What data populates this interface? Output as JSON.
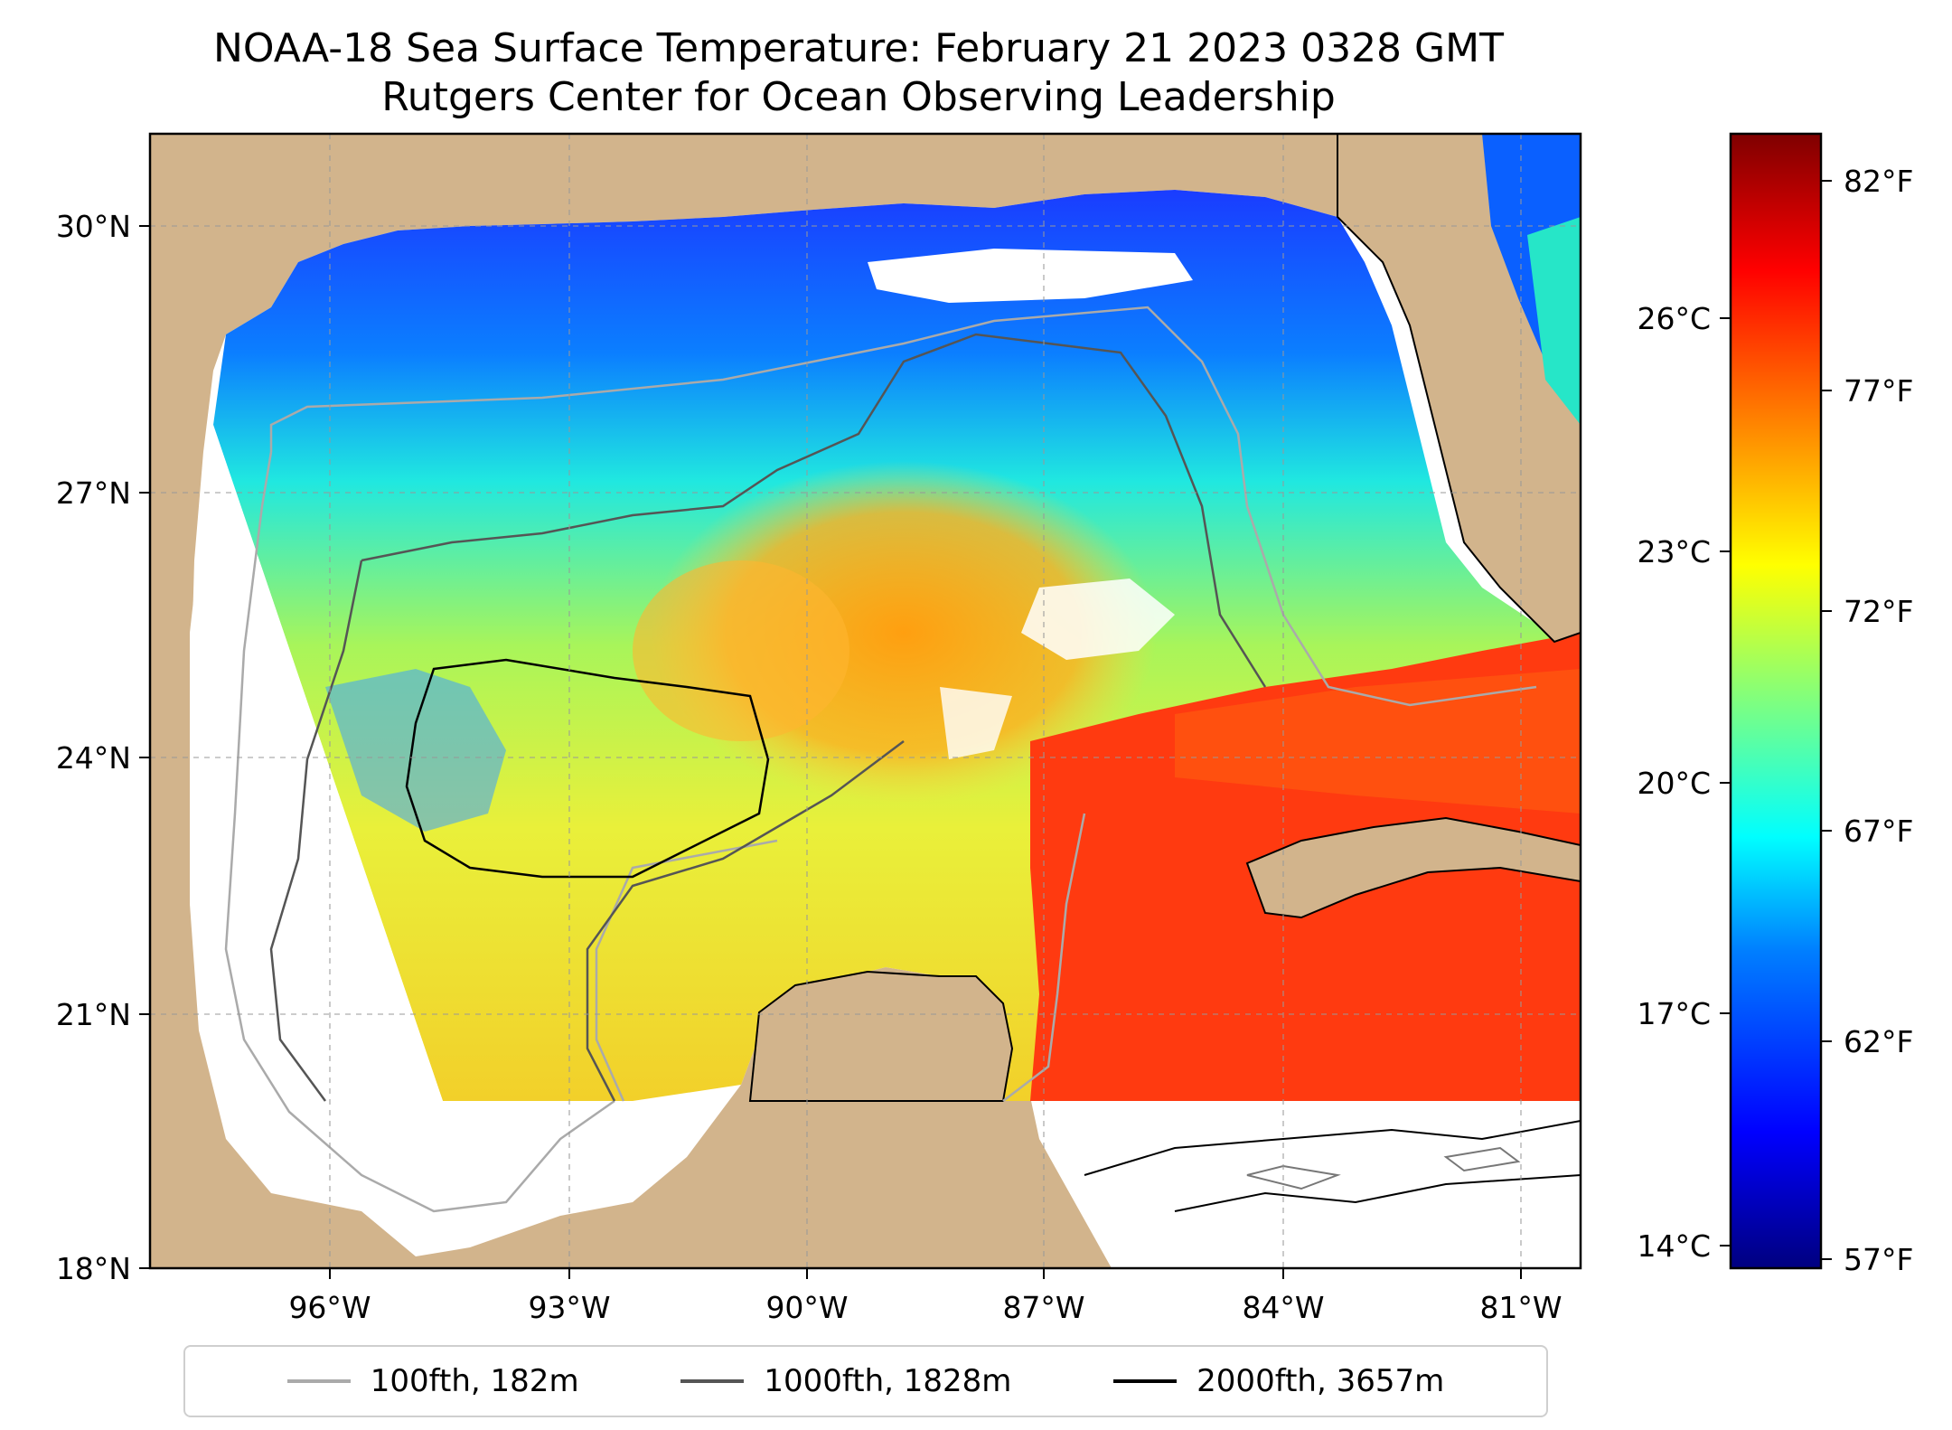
{
  "title_line1": "NOAA-18 Sea Surface Temperature: February 21 2023 0328 GMT",
  "title_line2": "Rutgers Center for Ocean Observing Leadership",
  "map": {
    "lat_ticks": [
      "30°N",
      "27°N",
      "24°N",
      "21°N",
      "18°N"
    ],
    "lon_ticks": [
      "96°W",
      "93°W",
      "90°W",
      "87°W",
      "84°W",
      "81°W"
    ]
  },
  "colorbar": {
    "celsius_ticks": [
      "26°C",
      "23°C",
      "20°C",
      "17°C",
      "14°C"
    ],
    "fahrenheit_ticks": [
      "82°F",
      "77°F",
      "72°F",
      "67°F",
      "62°F",
      "57°F"
    ],
    "colormap": "jet",
    "colors": [
      "#00007f",
      "#0000ff",
      "#007fff",
      "#00ffff",
      "#7fff7f",
      "#ffff00",
      "#ff7f00",
      "#ff0000",
      "#7f0000"
    ]
  },
  "legend": [
    {
      "label": "100fth, 182m",
      "color": "#aaaaaa"
    },
    {
      "label": "1000fth, 1828m",
      "color": "#555555"
    },
    {
      "label": "2000fth, 3657m",
      "color": "#000000"
    }
  ],
  "land_color": "#d2b48c"
}
